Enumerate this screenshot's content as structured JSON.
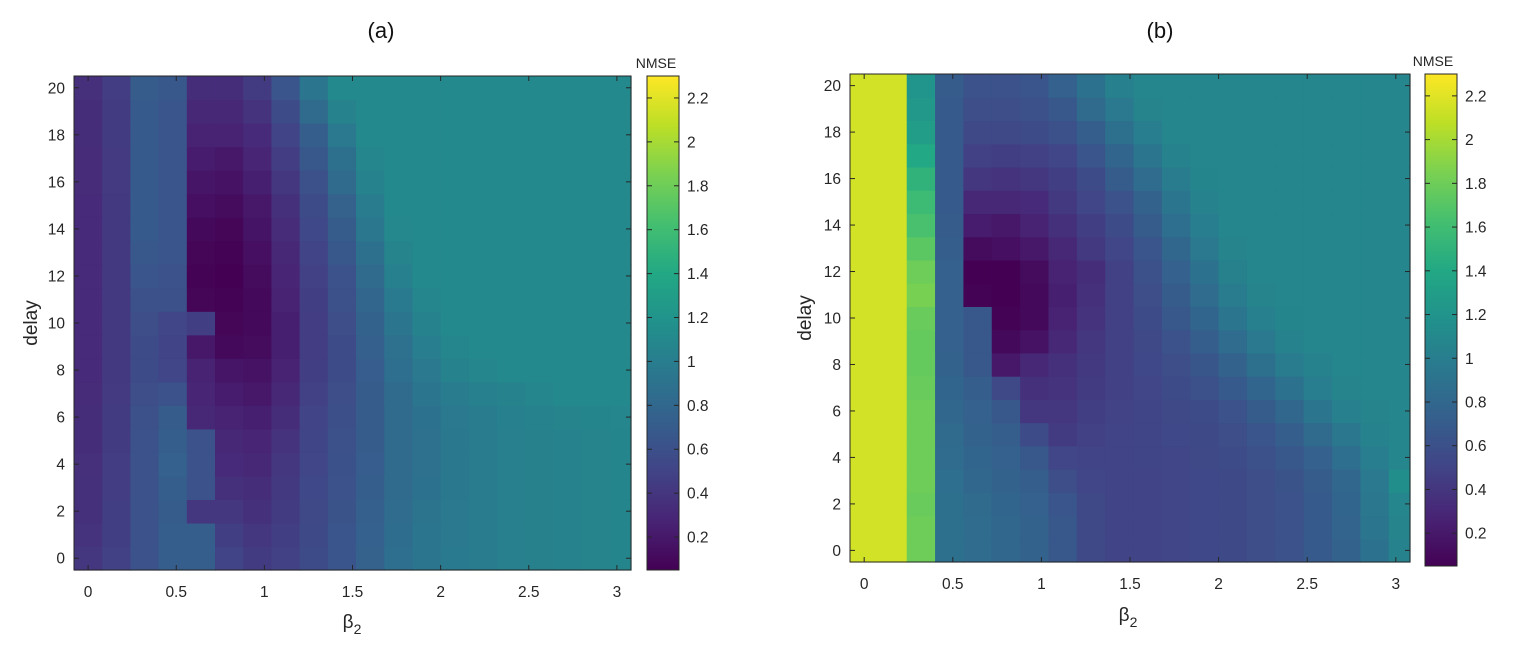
{
  "chart_data": [
    {
      "type": "heatmap",
      "title": "(a)",
      "xlabel": "β",
      "xlabel_sub": "2",
      "ylabel": "delay",
      "colorbar_label": "NMSE",
      "colormap": "viridis",
      "xlim": [
        -0.08,
        3.08
      ],
      "ylim": [
        -0.5,
        20.5
      ],
      "x_ticks": [
        "0",
        "0.5",
        "1",
        "1.5",
        "2",
        "2.5",
        "3"
      ],
      "x_tick_values": [
        0,
        0.5,
        1,
        1.5,
        2,
        2.5,
        3
      ],
      "y_ticks": [
        "0",
        "2",
        "4",
        "6",
        "8",
        "10",
        "12",
        "14",
        "16",
        "18",
        "20"
      ],
      "y_tick_values": [
        0,
        2,
        4,
        6,
        8,
        10,
        12,
        14,
        16,
        18,
        20
      ],
      "colorbar_range": [
        0.05,
        2.3
      ],
      "colorbar_ticks": [
        "0.2",
        "0.4",
        "0.6",
        "0.8",
        "1",
        "1.2",
        "1.4",
        "1.6",
        "1.8",
        "2",
        "2.2"
      ],
      "colorbar_tick_values": [
        0.2,
        0.4,
        0.6,
        0.8,
        1.0,
        1.2,
        1.4,
        1.6,
        1.8,
        2.0,
        2.2
      ],
      "x": [
        0,
        0.16,
        0.32,
        0.48,
        0.64,
        0.8,
        0.96,
        1.12,
        1.28,
        1.44,
        1.6,
        1.76,
        1.92,
        2.08,
        2.24,
        2.4,
        2.56,
        2.72,
        2.88,
        3.04
      ],
      "y": [
        0,
        1,
        2,
        3,
        4,
        5,
        6,
        7,
        8,
        9,
        10,
        11,
        12,
        13,
        14,
        15,
        16,
        17,
        18,
        19,
        20
      ],
      "z": [
        [
          0.4,
          0.48,
          0.62,
          0.72,
          0.72,
          0.5,
          0.44,
          0.48,
          0.56,
          0.64,
          0.75,
          0.86,
          0.93,
          0.97,
          0.99,
          1.01,
          1.03,
          1.05,
          1.06,
          1.07
        ],
        [
          0.38,
          0.46,
          0.62,
          0.72,
          0.72,
          0.46,
          0.4,
          0.46,
          0.55,
          0.64,
          0.74,
          0.85,
          0.92,
          0.96,
          0.99,
          1.01,
          1.03,
          1.05,
          1.06,
          1.07
        ],
        [
          0.36,
          0.46,
          0.62,
          0.7,
          0.4,
          0.4,
          0.36,
          0.44,
          0.54,
          0.63,
          0.73,
          0.84,
          0.91,
          0.96,
          0.99,
          1.01,
          1.03,
          1.05,
          1.06,
          1.07
        ],
        [
          0.36,
          0.45,
          0.62,
          0.72,
          0.62,
          0.36,
          0.34,
          0.42,
          0.53,
          0.62,
          0.72,
          0.83,
          0.9,
          0.95,
          0.98,
          1.01,
          1.03,
          1.05,
          1.06,
          1.07
        ],
        [
          0.35,
          0.45,
          0.62,
          0.74,
          0.62,
          0.32,
          0.3,
          0.4,
          0.52,
          0.61,
          0.71,
          0.82,
          0.89,
          0.95,
          0.98,
          1.01,
          1.03,
          1.05,
          1.06,
          1.07
        ],
        [
          0.34,
          0.44,
          0.62,
          0.72,
          0.62,
          0.3,
          0.28,
          0.38,
          0.51,
          0.6,
          0.7,
          0.82,
          0.89,
          0.95,
          0.98,
          1.01,
          1.03,
          1.05,
          1.06,
          1.07
        ],
        [
          0.34,
          0.44,
          0.6,
          0.7,
          0.3,
          0.26,
          0.24,
          0.34,
          0.5,
          0.59,
          0.7,
          0.82,
          0.9,
          0.96,
          0.99,
          1.02,
          1.04,
          1.06,
          1.07,
          1.08
        ],
        [
          0.33,
          0.43,
          0.58,
          0.62,
          0.28,
          0.22,
          0.2,
          0.3,
          0.48,
          0.58,
          0.7,
          0.83,
          0.92,
          0.98,
          1.02,
          1.05,
          1.08,
          1.1,
          1.1,
          1.1
        ],
        [
          0.32,
          0.42,
          0.56,
          0.52,
          0.26,
          0.18,
          0.16,
          0.26,
          0.46,
          0.57,
          0.71,
          0.86,
          0.96,
          1.04,
          1.08,
          1.1,
          1.1,
          1.1,
          1.1,
          1.1
        ],
        [
          0.32,
          0.42,
          0.56,
          0.5,
          0.2,
          0.1,
          0.12,
          0.24,
          0.45,
          0.57,
          0.73,
          0.89,
          1.0,
          1.08,
          1.1,
          1.1,
          1.1,
          1.1,
          1.1,
          1.1
        ],
        [
          0.32,
          0.42,
          0.58,
          0.52,
          0.46,
          0.08,
          0.1,
          0.24,
          0.45,
          0.58,
          0.76,
          0.93,
          1.05,
          1.1,
          1.1,
          1.1,
          1.1,
          1.1,
          1.1,
          1.1
        ],
        [
          0.32,
          0.42,
          0.6,
          0.6,
          0.08,
          0.06,
          0.1,
          0.26,
          0.46,
          0.6,
          0.79,
          0.97,
          1.08,
          1.1,
          1.1,
          1.1,
          1.1,
          1.1,
          1.1,
          1.1
        ],
        [
          0.32,
          0.42,
          0.64,
          0.62,
          0.06,
          0.05,
          0.12,
          0.28,
          0.48,
          0.62,
          0.83,
          1.02,
          1.1,
          1.1,
          1.1,
          1.1,
          1.1,
          1.1,
          1.1,
          1.1
        ],
        [
          0.32,
          0.42,
          0.66,
          0.64,
          0.08,
          0.06,
          0.14,
          0.3,
          0.5,
          0.66,
          0.88,
          1.06,
          1.1,
          1.1,
          1.1,
          1.1,
          1.1,
          1.1,
          1.1,
          1.1
        ],
        [
          0.32,
          0.42,
          0.68,
          0.64,
          0.1,
          0.08,
          0.17,
          0.33,
          0.53,
          0.7,
          0.94,
          1.09,
          1.1,
          1.1,
          1.1,
          1.1,
          1.1,
          1.1,
          1.1,
          1.1
        ],
        [
          0.32,
          0.42,
          0.68,
          0.64,
          0.14,
          0.12,
          0.2,
          0.36,
          0.56,
          0.75,
          0.99,
          1.1,
          1.1,
          1.1,
          1.1,
          1.1,
          1.1,
          1.1,
          1.1,
          1.1
        ],
        [
          0.33,
          0.43,
          0.68,
          0.64,
          0.18,
          0.16,
          0.24,
          0.4,
          0.6,
          0.82,
          1.04,
          1.1,
          1.1,
          1.1,
          1.1,
          1.1,
          1.1,
          1.1,
          1.1,
          1.1
        ],
        [
          0.33,
          0.43,
          0.68,
          0.64,
          0.22,
          0.2,
          0.28,
          0.45,
          0.66,
          0.88,
          1.08,
          1.1,
          1.1,
          1.1,
          1.1,
          1.1,
          1.1,
          1.1,
          1.1,
          1.1
        ],
        [
          0.34,
          0.44,
          0.68,
          0.64,
          0.26,
          0.26,
          0.32,
          0.5,
          0.72,
          0.96,
          1.1,
          1.1,
          1.1,
          1.1,
          1.1,
          1.1,
          1.1,
          1.1,
          1.1,
          1.1
        ],
        [
          0.34,
          0.44,
          0.68,
          0.64,
          0.3,
          0.3,
          0.38,
          0.56,
          0.82,
          1.05,
          1.1,
          1.1,
          1.1,
          1.1,
          1.1,
          1.1,
          1.1,
          1.1,
          1.1,
          1.1
        ],
        [
          0.35,
          0.45,
          0.7,
          0.66,
          0.34,
          0.34,
          0.44,
          0.64,
          0.92,
          1.1,
          1.1,
          1.1,
          1.1,
          1.1,
          1.1,
          1.1,
          1.1,
          1.1,
          1.1,
          1.1
        ]
      ]
    },
    {
      "type": "heatmap",
      "title": "(b)",
      "xlabel": "β",
      "xlabel_sub": "2",
      "ylabel": "delay",
      "colorbar_label": "NMSE",
      "colormap": "viridis",
      "xlim": [
        -0.08,
        3.08
      ],
      "ylim": [
        -0.5,
        20.5
      ],
      "x_ticks": [
        "0",
        "0.5",
        "1",
        "1.5",
        "2",
        "2.5",
        "3"
      ],
      "x_tick_values": [
        0,
        0.5,
        1,
        1.5,
        2,
        2.5,
        3
      ],
      "y_ticks": [
        "0",
        "2",
        "4",
        "6",
        "8",
        "10",
        "12",
        "14",
        "16",
        "18",
        "20"
      ],
      "y_tick_values": [
        0,
        2,
        4,
        6,
        8,
        10,
        12,
        14,
        16,
        18,
        20
      ],
      "colorbar_range": [
        0.05,
        2.3
      ],
      "colorbar_ticks": [
        "0.2",
        "0.4",
        "0.6",
        "0.8",
        "1",
        "1.2",
        "1.4",
        "1.6",
        "1.8",
        "2",
        "2.2"
      ],
      "colorbar_tick_values": [
        0.2,
        0.4,
        0.6,
        0.8,
        1.0,
        1.2,
        1.4,
        1.6,
        1.8,
        2.0,
        2.2
      ],
      "x": [
        0,
        0.16,
        0.32,
        0.48,
        0.64,
        0.8,
        0.96,
        1.12,
        1.28,
        1.44,
        1.6,
        1.76,
        1.92,
        2.08,
        2.24,
        2.4,
        2.56,
        2.72,
        2.88,
        3.04
      ],
      "y": [
        0,
        1,
        2,
        3,
        4,
        5,
        6,
        7,
        8,
        9,
        10,
        11,
        12,
        13,
        14,
        15,
        16,
        17,
        18,
        19,
        20
      ],
      "z": [
        [
          2.15,
          2.15,
          1.8,
          0.88,
          0.84,
          0.8,
          0.76,
          0.66,
          0.54,
          0.5,
          0.5,
          0.52,
          0.53,
          0.55,
          0.58,
          0.62,
          0.68,
          0.76,
          0.9,
          1.05
        ],
        [
          2.15,
          2.15,
          1.8,
          0.88,
          0.84,
          0.8,
          0.76,
          0.66,
          0.54,
          0.5,
          0.5,
          0.52,
          0.53,
          0.55,
          0.58,
          0.62,
          0.68,
          0.77,
          0.92,
          1.06
        ],
        [
          2.15,
          2.15,
          1.78,
          0.88,
          0.82,
          0.78,
          0.74,
          0.64,
          0.54,
          0.5,
          0.5,
          0.52,
          0.53,
          0.55,
          0.58,
          0.62,
          0.68,
          0.78,
          0.94,
          1.08
        ],
        [
          2.15,
          2.15,
          1.8,
          0.86,
          0.8,
          0.76,
          0.72,
          0.58,
          0.52,
          0.5,
          0.5,
          0.52,
          0.53,
          0.55,
          0.58,
          0.63,
          0.7,
          0.8,
          0.96,
          1.15
        ],
        [
          2.15,
          2.15,
          1.8,
          0.84,
          0.78,
          0.74,
          0.66,
          0.52,
          0.5,
          0.5,
          0.51,
          0.52,
          0.54,
          0.56,
          0.6,
          0.66,
          0.74,
          0.86,
          1.0,
          1.08
        ],
        [
          2.15,
          2.15,
          1.8,
          0.82,
          0.76,
          0.72,
          0.56,
          0.44,
          0.48,
          0.5,
          0.51,
          0.53,
          0.55,
          0.58,
          0.64,
          0.72,
          0.82,
          0.94,
          1.04,
          1.08
        ],
        [
          2.15,
          2.15,
          1.8,
          0.8,
          0.74,
          0.66,
          0.4,
          0.4,
          0.46,
          0.49,
          0.51,
          0.54,
          0.57,
          0.62,
          0.7,
          0.8,
          0.92,
          1.02,
          1.06,
          1.08
        ],
        [
          2.15,
          2.15,
          1.78,
          0.78,
          0.72,
          0.54,
          0.36,
          0.38,
          0.44,
          0.48,
          0.52,
          0.56,
          0.6,
          0.68,
          0.78,
          0.9,
          1.0,
          1.06,
          1.08,
          1.08
        ],
        [
          2.15,
          2.15,
          1.76,
          0.76,
          0.66,
          0.2,
          0.3,
          0.36,
          0.42,
          0.48,
          0.53,
          0.58,
          0.65,
          0.76,
          0.88,
          0.98,
          1.05,
          1.08,
          1.08,
          1.08
        ],
        [
          2.15,
          2.15,
          1.76,
          0.74,
          0.66,
          0.1,
          0.16,
          0.3,
          0.4,
          0.48,
          0.54,
          0.62,
          0.72,
          0.84,
          0.96,
          1.04,
          1.08,
          1.08,
          1.08,
          1.08
        ],
        [
          2.15,
          2.15,
          1.78,
          0.74,
          0.66,
          0.06,
          0.1,
          0.26,
          0.38,
          0.48,
          0.56,
          0.66,
          0.78,
          0.92,
          1.02,
          1.07,
          1.08,
          1.08,
          1.08,
          1.08
        ],
        [
          2.15,
          2.15,
          1.84,
          0.74,
          0.06,
          0.05,
          0.1,
          0.24,
          0.36,
          0.48,
          0.58,
          0.7,
          0.84,
          0.98,
          1.06,
          1.08,
          1.08,
          1.08,
          1.08,
          1.08
        ],
        [
          2.15,
          2.15,
          1.8,
          0.74,
          0.05,
          0.05,
          0.12,
          0.26,
          0.34,
          0.48,
          0.6,
          0.74,
          0.9,
          1.03,
          1.08,
          1.08,
          1.08,
          1.08,
          1.08,
          1.08
        ],
        [
          2.15,
          2.15,
          1.72,
          0.72,
          0.12,
          0.14,
          0.2,
          0.3,
          0.42,
          0.52,
          0.64,
          0.8,
          0.96,
          1.06,
          1.08,
          1.08,
          1.08,
          1.08,
          1.08,
          1.08
        ],
        [
          2.15,
          2.15,
          1.64,
          0.7,
          0.22,
          0.2,
          0.26,
          0.36,
          0.46,
          0.56,
          0.7,
          0.86,
          1.0,
          1.08,
          1.08,
          1.08,
          1.08,
          1.08,
          1.08,
          1.08
        ],
        [
          2.15,
          2.15,
          1.58,
          0.68,
          0.3,
          0.3,
          0.32,
          0.42,
          0.52,
          0.62,
          0.76,
          0.92,
          1.04,
          1.08,
          1.08,
          1.08,
          1.08,
          1.08,
          1.08,
          1.08
        ],
        [
          2.15,
          2.15,
          1.5,
          0.68,
          0.4,
          0.38,
          0.4,
          0.46,
          0.56,
          0.7,
          0.84,
          0.98,
          1.07,
          1.08,
          1.08,
          1.08,
          1.08,
          1.08,
          1.08,
          1.08
        ],
        [
          2.15,
          2.15,
          1.4,
          0.68,
          0.48,
          0.46,
          0.48,
          0.52,
          0.64,
          0.78,
          0.92,
          1.04,
          1.08,
          1.08,
          1.08,
          1.08,
          1.08,
          1.08,
          1.08,
          1.08
        ],
        [
          2.15,
          2.15,
          1.3,
          0.68,
          0.54,
          0.54,
          0.56,
          0.6,
          0.72,
          0.88,
          1.0,
          1.08,
          1.08,
          1.08,
          1.08,
          1.08,
          1.08,
          1.08,
          1.08,
          1.08
        ],
        [
          2.15,
          2.15,
          1.24,
          0.68,
          0.58,
          0.58,
          0.6,
          0.66,
          0.82,
          0.96,
          1.06,
          1.08,
          1.08,
          1.08,
          1.08,
          1.08,
          1.08,
          1.08,
          1.08,
          1.08
        ],
        [
          2.15,
          2.15,
          1.2,
          0.7,
          0.62,
          0.62,
          0.64,
          0.74,
          0.9,
          1.02,
          1.08,
          1.08,
          1.08,
          1.08,
          1.08,
          1.08,
          1.08,
          1.08,
          1.08,
          1.08
        ]
      ]
    }
  ]
}
